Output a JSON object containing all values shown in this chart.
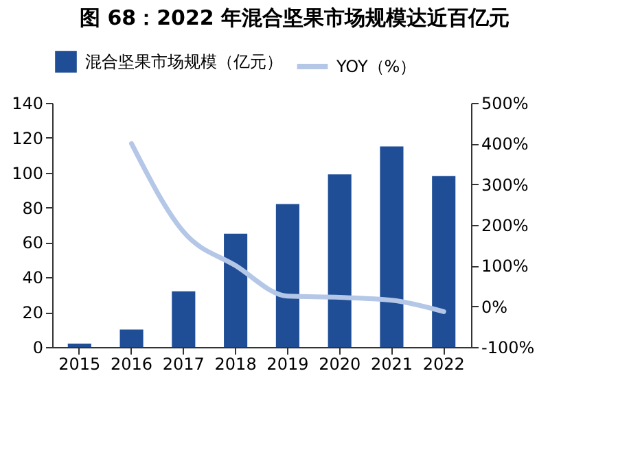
{
  "chart_data": {
    "type": "bar",
    "title": "图 68：2022 年混合坚果市场规模达近百亿元",
    "categories": [
      "2015",
      "2016",
      "2017",
      "2018",
      "2019",
      "2020",
      "2021",
      "2022"
    ],
    "series": [
      {
        "name": "混合坚果市场规模（亿元）",
        "color": "#1f4e96",
        "values": [
          2,
          10,
          32,
          65,
          82,
          99,
          115,
          98
        ]
      },
      {
        "name": "YOY（%）",
        "type": "line",
        "axis": "y2",
        "color": "#b4c7e7",
        "values": [
          null,
          400,
          183,
          100,
          25,
          22,
          15,
          -13
        ]
      }
    ],
    "ylim": [
      0,
      140
    ],
    "yticks": [
      0,
      20,
      40,
      60,
      80,
      100,
      120,
      140
    ],
    "y2lim": [
      -100,
      500
    ],
    "y2ticks": [
      {
        "value": -100,
        "label": "-100%"
      },
      {
        "value": 0,
        "label": "0%"
      },
      {
        "value": 100,
        "label": "100%"
      },
      {
        "value": 200,
        "label": "200%"
      },
      {
        "value": 300,
        "label": "300%"
      },
      {
        "value": 400,
        "label": "400%"
      },
      {
        "value": 500,
        "label": "500%"
      }
    ],
    "grid": false,
    "legend": "top"
  }
}
